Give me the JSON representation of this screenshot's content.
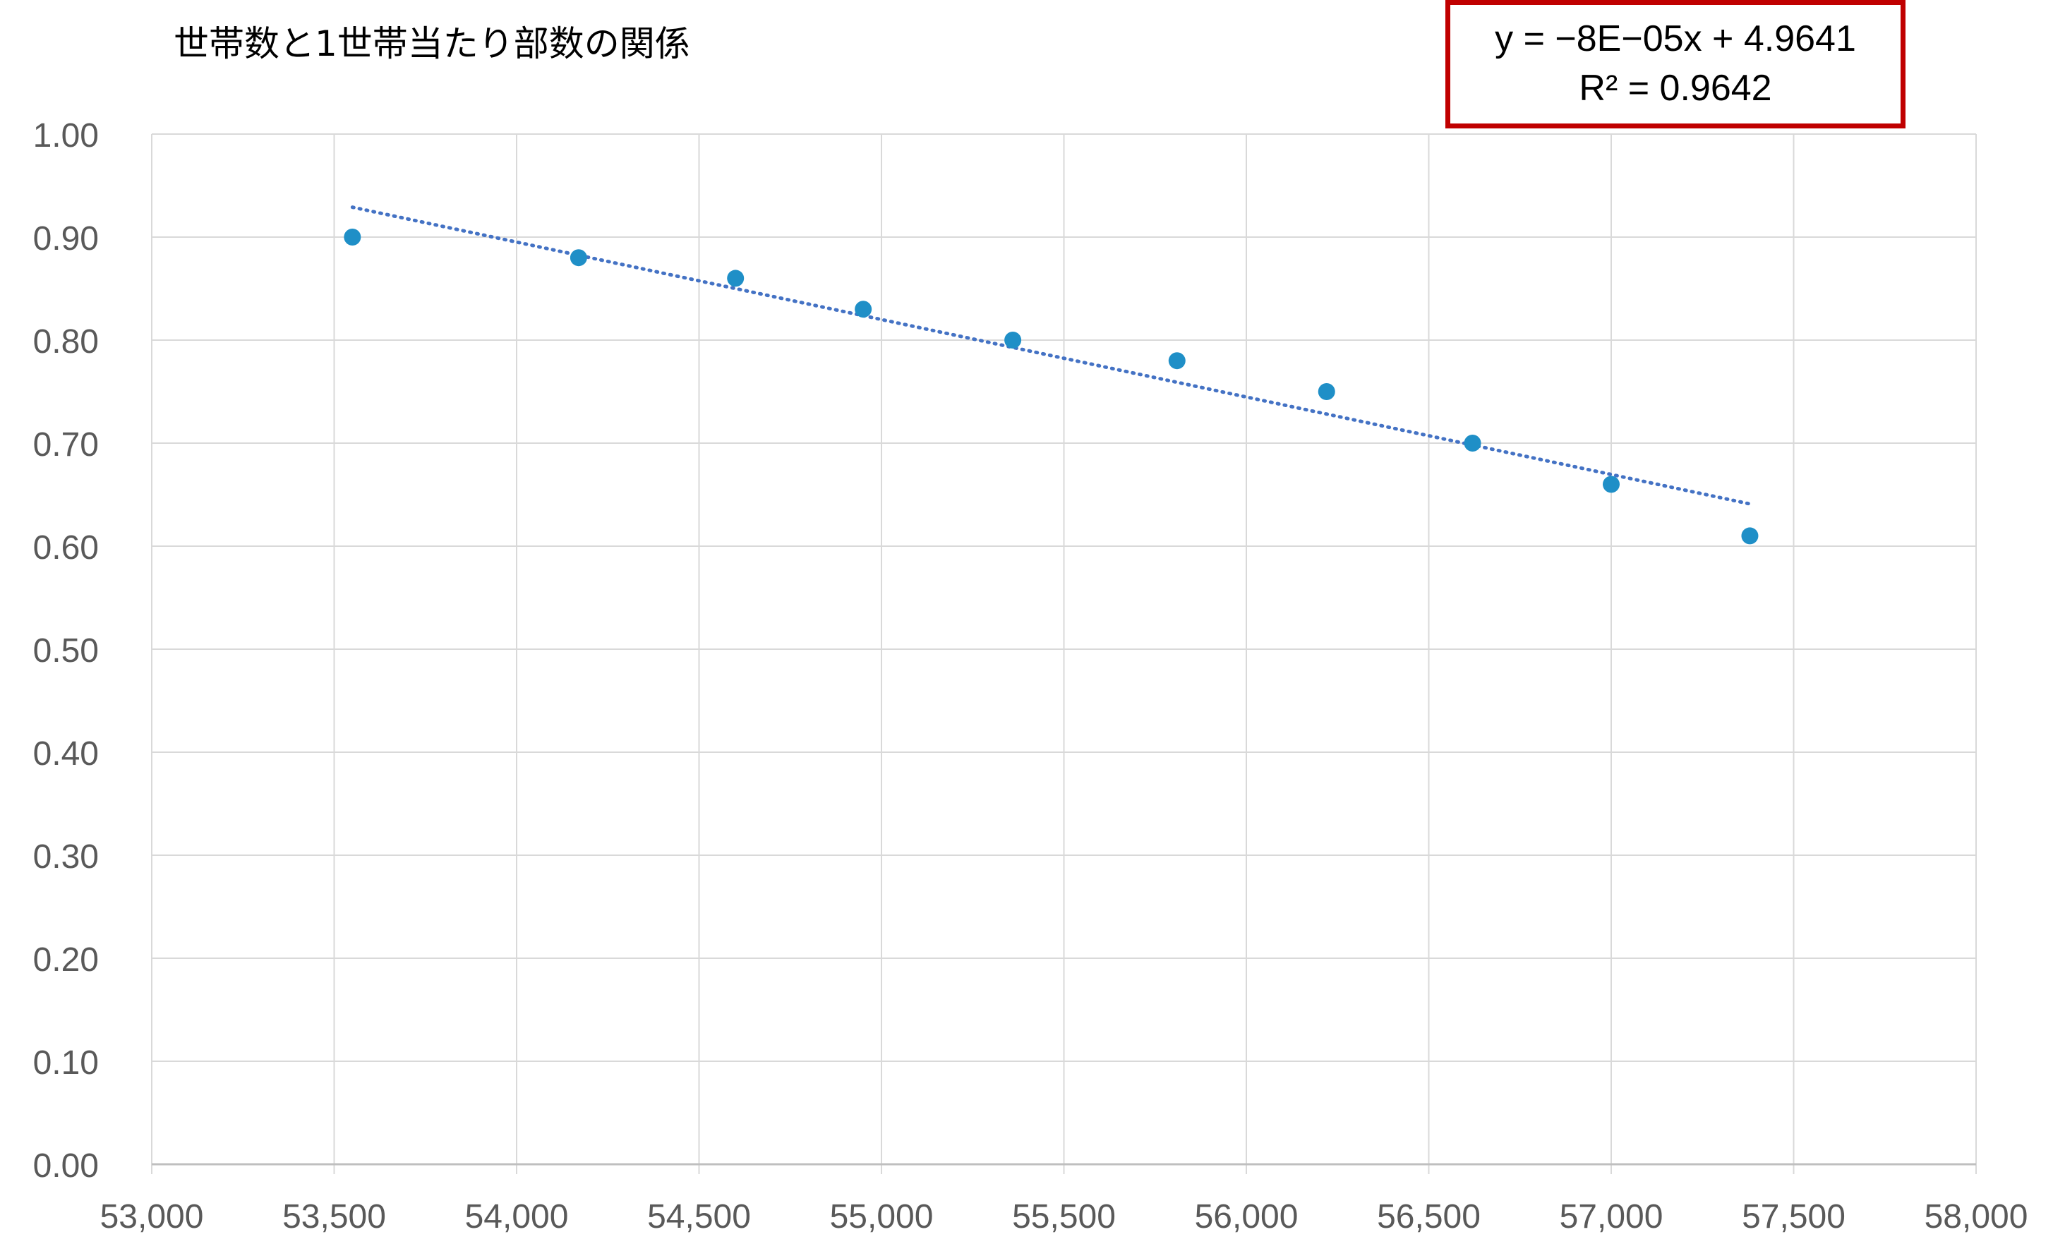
{
  "title": "世帯数と1世帯当たり部数の関係",
  "trendline": {
    "equation": "y = −8E−05x + 4.9641",
    "r_squared": "R² = 0.9642",
    "color": "#4472c4",
    "style": "dotted"
  },
  "colors": {
    "marker": "#1f8fc7",
    "grid": "#d9d9d9",
    "tick_label": "#595959",
    "box_border": "#c00000"
  },
  "chart_data": {
    "type": "scatter",
    "title": "世帯数と1世帯当たり部数の関係",
    "xlabel": "",
    "ylabel": "",
    "xlim": [
      53000,
      58000
    ],
    "ylim": [
      0,
      1
    ],
    "x_ticks": [
      53000,
      53500,
      54000,
      54500,
      55000,
      55500,
      56000,
      56500,
      57000,
      57500,
      58000
    ],
    "x_tick_labels": [
      "53,000",
      "53,500",
      "54,000",
      "54,500",
      "55,000",
      "55,500",
      "56,000",
      "56,500",
      "57,000",
      "57,500",
      "58,000"
    ],
    "y_ticks": [
      0,
      0.1,
      0.2,
      0.3,
      0.4,
      0.5,
      0.6,
      0.7,
      0.8,
      0.9,
      1.0
    ],
    "y_tick_labels": [
      "0.00",
      "0.10",
      "0.20",
      "0.30",
      "0.40",
      "0.50",
      "0.60",
      "0.70",
      "0.80",
      "0.90",
      "1.00"
    ],
    "grid": true,
    "legend": "none",
    "series": [
      {
        "x": [
          53550,
          54170,
          54600,
          54950,
          55360,
          55810,
          56220,
          56620,
          57000,
          57380
        ],
        "y": [
          0.9,
          0.88,
          0.86,
          0.83,
          0.8,
          0.78,
          0.75,
          0.7,
          0.66,
          0.61
        ]
      }
    ],
    "trendline": {
      "type": "linear",
      "x_range": [
        53550,
        57380
      ],
      "y_at_range": [
        0.929,
        0.641
      ]
    }
  }
}
